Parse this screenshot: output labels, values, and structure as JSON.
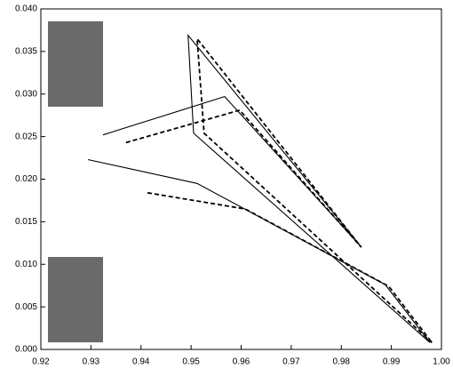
{
  "chart_data": {
    "type": "line",
    "xlim": [
      0.92,
      1.0
    ],
    "ylim": [
      0,
      0.04
    ],
    "xticks": [
      0.92,
      0.93,
      0.94,
      0.95,
      0.96,
      0.97,
      0.98,
      0.99,
      {
        "value": 1.0,
        "label": "1.00"
      }
    ],
    "yticks": [
      {
        "value": 0,
        "label": "0.000"
      },
      0.005,
      {
        "value": 0.01,
        "label": "0.010"
      },
      0.015,
      {
        "value": 0.02,
        "label": "0.020"
      },
      0.025,
      {
        "value": 0.03,
        "label": "0.030"
      },
      0.035,
      {
        "value": 0.04,
        "label": "0.040"
      }
    ],
    "series": [
      {
        "color": "#000000",
        "dashed": false,
        "x": [
          0.9324,
          0.9567,
          0.9839,
          0.9494,
          0.9505,
          0.9975
        ],
        "values": [
          0.0252,
          0.0297,
          0.0121,
          0.0369,
          0.0254,
          0.0009
        ]
      },
      {
        "color": "#000000",
        "dashed": false,
        "x": [
          0.9294,
          0.9512,
          0.9888,
          0.9977
        ],
        "values": [
          0.0223,
          0.0195,
          0.0076,
          0.0008
        ]
      },
      {
        "color": "#000000",
        "dashed": true,
        "x": [
          0.937,
          0.9597,
          0.984,
          0.9512,
          0.9526,
          0.9981
        ],
        "values": [
          0.0243,
          0.0281,
          0.012,
          0.0365,
          0.0254,
          0.0008
        ]
      },
      {
        "color": "#000000",
        "dashed": true,
        "x": [
          0.9413,
          0.9608,
          0.9895,
          0.9981
        ],
        "values": [
          0.0184,
          0.0165,
          0.0074,
          0.0008
        ]
      }
    ]
  }
}
